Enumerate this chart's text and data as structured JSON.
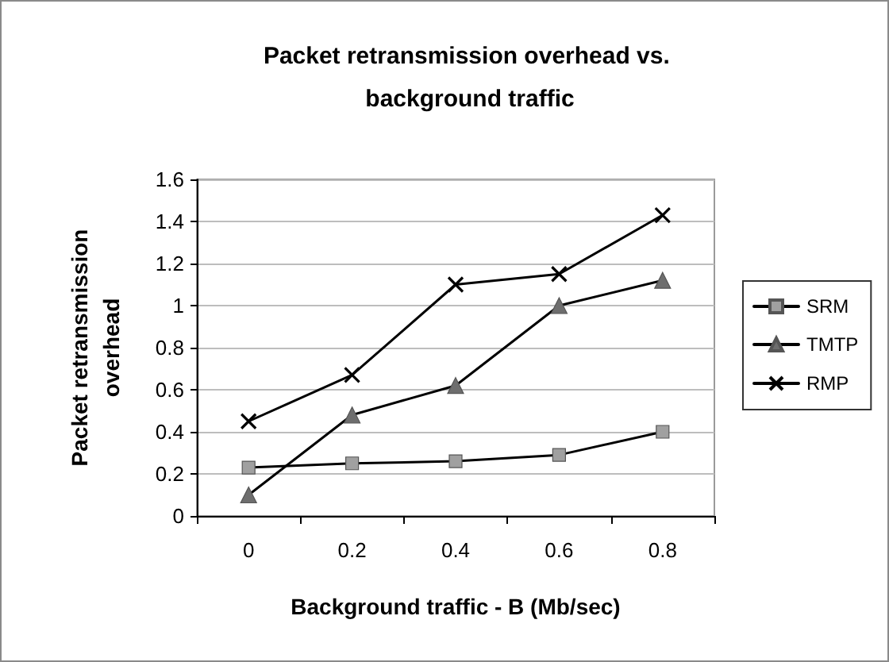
{
  "chart_data": {
    "type": "line",
    "title": "Packet retransmission overhead vs. background traffic",
    "xlabel": "Background traffic - B (Mb/sec)",
    "ylabel": "Packet retransmission overhead",
    "categories": [
      "0",
      "0.2",
      "0.4",
      "0.6",
      "0.8"
    ],
    "series": [
      {
        "name": "SRM",
        "color": "#a0a0a0",
        "marker": "square",
        "values": [
          0.23,
          0.25,
          0.26,
          0.29,
          0.4
        ]
      },
      {
        "name": "TMTP",
        "color": "#6e6e6e",
        "marker": "triangle",
        "values": [
          0.1,
          0.48,
          0.62,
          1.0,
          1.12
        ]
      },
      {
        "name": "RMP",
        "color": "#000000",
        "marker": "cross",
        "values": [
          0.45,
          0.67,
          1.1,
          1.15,
          1.43
        ]
      }
    ],
    "ylim": [
      0,
      1.6
    ],
    "yticks": [
      0,
      0.2,
      0.4,
      0.6,
      0.8,
      1,
      1.2,
      1.4,
      1.6
    ],
    "grid": "y",
    "legend": "right"
  }
}
